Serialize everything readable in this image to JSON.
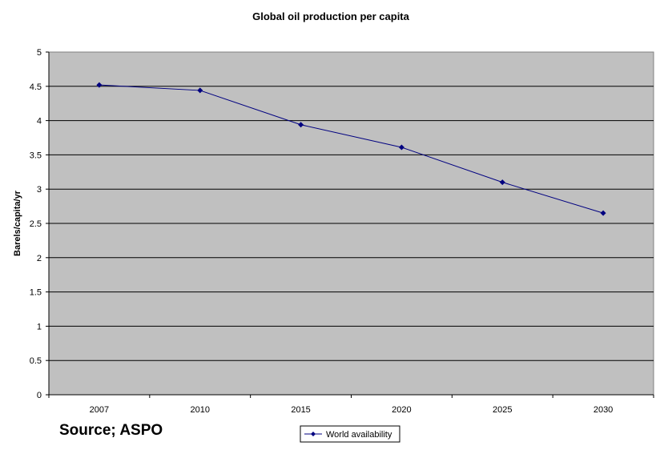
{
  "chart_data": {
    "type": "line",
    "title": "Global oil production per capita",
    "xlabel": "",
    "ylabel": "Barels/capita/yr",
    "categories": [
      "2007",
      "2010",
      "2015",
      "2020",
      "2025",
      "2030"
    ],
    "series": [
      {
        "name": "World availability",
        "values": [
          4.52,
          4.44,
          3.94,
          3.61,
          3.1,
          2.65
        ]
      }
    ],
    "ylim": [
      0,
      5
    ],
    "yticks": [
      "0",
      "0.5",
      "1",
      "1.5",
      "2",
      "2.5",
      "3",
      "3.5",
      "4",
      "4.5",
      "5"
    ],
    "grid": true,
    "legend_position": "bottom-center",
    "colors": {
      "plot_background": "#c0c0c0",
      "series": "#000080",
      "gridline": "#000000"
    }
  },
  "source_note": "Source; ASPO"
}
